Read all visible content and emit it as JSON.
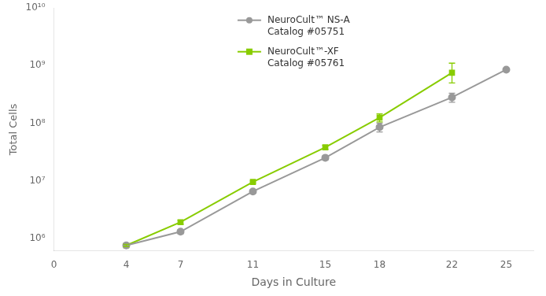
{
  "chart_data": {
    "type": "line",
    "xlabel": "Days in Culture",
    "ylabel": "Total Cells",
    "log": "y",
    "grid": false,
    "legend": "upper center",
    "xlim": [
      0,
      26.5
    ],
    "xticks": [
      0,
      4,
      7,
      11,
      15,
      18,
      22,
      25
    ],
    "ylim": [
      600000,
      10000000000
    ],
    "yticks": [
      {
        "value": 1000000,
        "label": "10⁶"
      },
      {
        "value": 10000000,
        "label": "10⁷"
      },
      {
        "value": 100000000,
        "label": "10⁸"
      },
      {
        "value": 1000000000,
        "label": "10⁹"
      },
      {
        "value": 10000000000,
        "label": "10¹⁰"
      }
    ],
    "series": [
      {
        "name": "NeuroCult™ NS-A\nCatalog #05751",
        "color": "#999999",
        "marker": "circle",
        "x": [
          4,
          7,
          11,
          15,
          18,
          22,
          25
        ],
        "values": [
          750000,
          1300000,
          6500000,
          25000000,
          85000000,
          280000000,
          850000000
        ],
        "error_low": [
          50000,
          100000,
          400000,
          2000000,
          15000000,
          50000000,
          0
        ],
        "error_high": [
          50000,
          100000,
          400000,
          2000000,
          15000000,
          50000000,
          0
        ]
      },
      {
        "name": "NeuroCult™-XF\nCatalog #05761",
        "color": "#88cc00",
        "marker": "square",
        "x": [
          4,
          7,
          11,
          15,
          18,
          22
        ],
        "values": [
          750000,
          1900000,
          9500000,
          38000000,
          125000000,
          750000000
        ],
        "error_low": [
          30000,
          150000,
          400000,
          3000000,
          20000000,
          250000000
        ],
        "error_high": [
          30000,
          150000,
          400000,
          3000000,
          20000000,
          350000000
        ]
      }
    ]
  }
}
